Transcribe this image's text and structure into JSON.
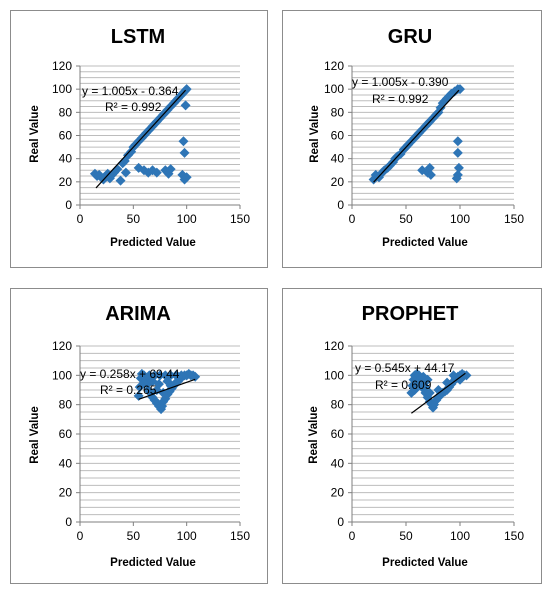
{
  "colors": {
    "marker": "#2e75b6",
    "trendline": "#000000",
    "grid": "#bdbdbd"
  },
  "chart_data": [
    {
      "type": "scatter",
      "title": "LSTM",
      "xlabel": "Predicted Value",
      "ylabel": "Real  Value",
      "xlim": [
        0,
        150
      ],
      "ylim": [
        0,
        120
      ],
      "xticks": [
        "0",
        "50",
        "100",
        "150"
      ],
      "yticks": [
        "0",
        "20",
        "40",
        "60",
        "80",
        "100",
        "120"
      ],
      "grid": true,
      "marker": "diamond",
      "equation": "y = 1.005x - 0.364",
      "r2_label": "R² = 0.992",
      "trendline": {
        "slope": 1.005,
        "intercept": -0.364,
        "x_range": [
          15,
          99
        ]
      },
      "points": [
        [
          14,
          27
        ],
        [
          16,
          25
        ],
        [
          18,
          26
        ],
        [
          20,
          24
        ],
        [
          22,
          22
        ],
        [
          24,
          25
        ],
        [
          26,
          27
        ],
        [
          28,
          23
        ],
        [
          30,
          26
        ],
        [
          32,
          28
        ],
        [
          35,
          31
        ],
        [
          38,
          21
        ],
        [
          40,
          36
        ],
        [
          42,
          38
        ],
        [
          45,
          43
        ],
        [
          48,
          46
        ],
        [
          50,
          50
        ],
        [
          52,
          52
        ],
        [
          55,
          55
        ],
        [
          58,
          58
        ],
        [
          60,
          60
        ],
        [
          62,
          62
        ],
        [
          65,
          65
        ],
        [
          68,
          68
        ],
        [
          70,
          70
        ],
        [
          72,
          72
        ],
        [
          75,
          75
        ],
        [
          78,
          78
        ],
        [
          80,
          80
        ],
        [
          82,
          82
        ],
        [
          85,
          85
        ],
        [
          88,
          88
        ],
        [
          90,
          90
        ],
        [
          92,
          92
        ],
        [
          95,
          95
        ],
        [
          97,
          97
        ],
        [
          99,
          99
        ],
        [
          100,
          100
        ],
        [
          43,
          28
        ],
        [
          55,
          32
        ],
        [
          60,
          30
        ],
        [
          64,
          28
        ],
        [
          68,
          30
        ],
        [
          72,
          28
        ],
        [
          80,
          30
        ],
        [
          83,
          27
        ],
        [
          85,
          31
        ],
        [
          96,
          26
        ],
        [
          98,
          22
        ],
        [
          100,
          24
        ],
        [
          97,
          55
        ],
        [
          98,
          45
        ],
        [
          99,
          86
        ]
      ]
    },
    {
      "type": "scatter",
      "title": "GRU",
      "xlabel": "Predicted Value",
      "ylabel": "Real  Value",
      "xlim": [
        0,
        150
      ],
      "ylim": [
        0,
        120
      ],
      "xticks": [
        "0",
        "50",
        "100",
        "150"
      ],
      "yticks": [
        "0",
        "20",
        "40",
        "60",
        "80",
        "100",
        "120"
      ],
      "grid": true,
      "marker": "diamond",
      "equation": "y = 1.005x - 0.390",
      "r2_label": "R² = 0.992",
      "trendline": {
        "slope": 1.005,
        "intercept": -0.39,
        "x_range": [
          20,
          99
        ]
      },
      "points": [
        [
          20,
          22
        ],
        [
          22,
          26
        ],
        [
          25,
          24
        ],
        [
          28,
          28
        ],
        [
          30,
          30
        ],
        [
          33,
          32
        ],
        [
          35,
          34
        ],
        [
          38,
          37
        ],
        [
          40,
          40
        ],
        [
          42,
          42
        ],
        [
          45,
          44
        ],
        [
          48,
          48
        ],
        [
          50,
          50
        ],
        [
          52,
          52
        ],
        [
          55,
          55
        ],
        [
          58,
          58
        ],
        [
          60,
          60
        ],
        [
          62,
          62
        ],
        [
          65,
          65
        ],
        [
          68,
          68
        ],
        [
          70,
          70
        ],
        [
          72,
          72
        ],
        [
          75,
          75
        ],
        [
          78,
          78
        ],
        [
          80,
          80
        ],
        [
          82,
          84
        ],
        [
          84,
          88
        ],
        [
          86,
          90
        ],
        [
          88,
          92
        ],
        [
          90,
          94
        ],
        [
          92,
          96
        ],
        [
          95,
          98
        ],
        [
          98,
          100
        ],
        [
          100,
          100
        ],
        [
          65,
          30
        ],
        [
          70,
          28
        ],
        [
          72,
          32
        ],
        [
          73,
          26
        ],
        [
          98,
          55
        ],
        [
          98,
          45
        ],
        [
          99,
          32
        ],
        [
          98,
          26
        ],
        [
          97,
          23
        ]
      ]
    },
    {
      "type": "scatter",
      "title": "ARIMA",
      "xlabel": "Predicted Value",
      "ylabel": "Real  Value",
      "xlim": [
        0,
        150
      ],
      "ylim": [
        0,
        120
      ],
      "xticks": [
        "0",
        "50",
        "100",
        "150"
      ],
      "yticks": [
        "0",
        "20",
        "40",
        "60",
        "80",
        "100",
        "120"
      ],
      "grid": true,
      "marker": "diamond",
      "equation": "y = 0.258x + 69.44",
      "r2_label": "R² = 0.265",
      "trendline": {
        "slope": 0.258,
        "intercept": 69.44,
        "x_range": [
          55,
          108
        ]
      },
      "points": [
        [
          55,
          86
        ],
        [
          56,
          92
        ],
        [
          57,
          98
        ],
        [
          58,
          101
        ],
        [
          60,
          100
        ],
        [
          62,
          97
        ],
        [
          63,
          94
        ],
        [
          64,
          90
        ],
        [
          66,
          88
        ],
        [
          68,
          85
        ],
        [
          70,
          83
        ],
        [
          72,
          81
        ],
        [
          74,
          79
        ],
        [
          76,
          77
        ],
        [
          77,
          79
        ],
        [
          78,
          82
        ],
        [
          80,
          84
        ],
        [
          82,
          87
        ],
        [
          84,
          89
        ],
        [
          86,
          91
        ],
        [
          88,
          93
        ],
        [
          90,
          95
        ],
        [
          92,
          96
        ],
        [
          94,
          98
        ],
        [
          96,
          99
        ],
        [
          98,
          100
        ],
        [
          100,
          100
        ],
        [
          102,
          101
        ],
        [
          104,
          100
        ],
        [
          106,
          100
        ],
        [
          108,
          99
        ],
        [
          65,
          100
        ],
        [
          70,
          100
        ],
        [
          75,
          100
        ],
        [
          80,
          100
        ],
        [
          85,
          100
        ],
        [
          90,
          100
        ],
        [
          95,
          100
        ],
        [
          60,
          95
        ],
        [
          72,
          90
        ],
        [
          78,
          88
        ],
        [
          85,
          93
        ],
        [
          92,
          99
        ],
        [
          68,
          96
        ],
        [
          74,
          94
        ],
        [
          82,
          96
        ]
      ]
    },
    {
      "type": "scatter",
      "title": "PROPHET",
      "xlabel": "Predicted Value",
      "ylabel": "Real  Value",
      "xlim": [
        0,
        150
      ],
      "ylim": [
        0,
        120
      ],
      "xticks": [
        "0",
        "50",
        "100",
        "150"
      ],
      "yticks": [
        "0",
        "20",
        "40",
        "60",
        "80",
        "100",
        "120"
      ],
      "grid": true,
      "marker": "diamond",
      "equation": "y = 0.545x + 44.17",
      "r2_label": "R² = 0.609",
      "trendline": {
        "slope": 0.545,
        "intercept": 44.17,
        "x_range": [
          55,
          105
        ]
      },
      "points": [
        [
          55,
          88
        ],
        [
          56,
          93
        ],
        [
          57,
          97
        ],
        [
          58,
          100
        ],
        [
          60,
          101
        ],
        [
          62,
          100
        ],
        [
          64,
          98
        ],
        [
          65,
          95
        ],
        [
          66,
          91
        ],
        [
          68,
          88
        ],
        [
          70,
          85
        ],
        [
          72,
          82
        ],
        [
          74,
          80
        ],
        [
          75,
          78
        ],
        [
          76,
          80
        ],
        [
          78,
          83
        ],
        [
          80,
          85
        ],
        [
          82,
          87
        ],
        [
          84,
          88
        ],
        [
          86,
          89
        ],
        [
          88,
          90
        ],
        [
          90,
          92
        ],
        [
          92,
          94
        ],
        [
          94,
          96
        ],
        [
          96,
          98
        ],
        [
          98,
          99
        ],
        [
          100,
          100
        ],
        [
          102,
          101
        ],
        [
          104,
          100
        ],
        [
          106,
          100
        ],
        [
          62,
          94
        ],
        [
          68,
          92
        ],
        [
          72,
          88
        ],
        [
          80,
          90
        ],
        [
          88,
          95
        ],
        [
          94,
          100
        ],
        [
          100,
          97
        ],
        [
          58,
          90
        ],
        [
          70,
          97
        ],
        [
          66,
          99
        ]
      ]
    }
  ]
}
